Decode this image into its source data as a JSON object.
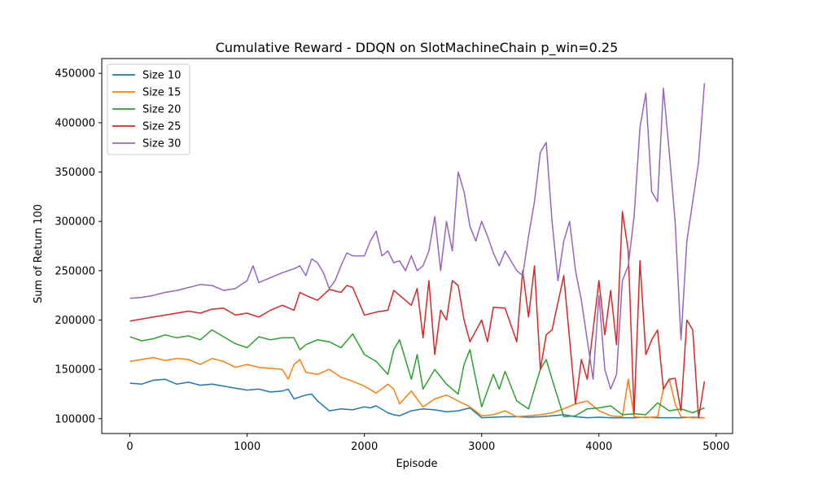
{
  "chart_data": {
    "type": "line",
    "title": "Cumulative Reward - DDQN on SlotMachineChain p_win=0.25",
    "xlabel": "Episode",
    "ylabel": "Sum of Return 100",
    "xlim": [
      -240,
      5140
    ],
    "ylim": [
      85000,
      465000
    ],
    "xticks": [
      0,
      1000,
      2000,
      3000,
      4000,
      5000
    ],
    "yticks": [
      100000,
      150000,
      200000,
      250000,
      300000,
      350000,
      400000,
      450000
    ],
    "grid": false,
    "legend_position": "top-left",
    "series": [
      {
        "name": "Size 10",
        "color": "#1f77b4",
        "x": [
          0,
          100,
          200,
          300,
          400,
          500,
          600,
          700,
          800,
          900,
          1000,
          1100,
          1200,
          1300,
          1350,
          1400,
          1450,
          1500,
          1550,
          1600,
          1700,
          1800,
          1900,
          2000,
          2050,
          2100,
          2200,
          2250,
          2300,
          2400,
          2500,
          2600,
          2700,
          2800,
          2900,
          3000,
          3100,
          3200,
          3300,
          3400,
          3500,
          3600,
          3700,
          3800,
          3900,
          4000,
          4100,
          4200,
          4300,
          4400,
          4500,
          4600,
          4700,
          4800,
          4900
        ],
        "values": [
          136000,
          135000,
          139000,
          140000,
          135000,
          137000,
          134000,
          135000,
          133000,
          131000,
          129000,
          130000,
          127000,
          128000,
          130000,
          120000,
          122000,
          124000,
          125000,
          118000,
          108000,
          110000,
          109000,
          112000,
          111000,
          113000,
          106000,
          104000,
          103000,
          108000,
          110000,
          109000,
          107000,
          108000,
          111000,
          101000,
          101500,
          102000,
          102000,
          101500,
          102000,
          103000,
          104000,
          102000,
          101000,
          101500,
          101000,
          101000,
          101000,
          101500,
          101000,
          101000,
          101000,
          101500,
          101000
        ]
      },
      {
        "name": "Size 15",
        "color": "#ff7f0e",
        "x": [
          0,
          100,
          200,
          300,
          400,
          500,
          600,
          700,
          800,
          900,
          1000,
          1100,
          1200,
          1300,
          1350,
          1400,
          1450,
          1500,
          1600,
          1700,
          1800,
          1900,
          2000,
          2100,
          2200,
          2250,
          2300,
          2400,
          2500,
          2600,
          2700,
          2800,
          2900,
          3000,
          3100,
          3200,
          3300,
          3400,
          3500,
          3600,
          3700,
          3800,
          3900,
          4000,
          4100,
          4200,
          4250,
          4300,
          4400,
          4500,
          4550,
          4600,
          4650,
          4700,
          4800,
          4900
        ],
        "values": [
          158000,
          160000,
          162000,
          159000,
          161000,
          160000,
          155000,
          161000,
          158000,
          152000,
          155000,
          152000,
          151000,
          150000,
          140000,
          155000,
          160000,
          147000,
          145000,
          150000,
          142000,
          138000,
          133000,
          126000,
          135000,
          130000,
          115000,
          128000,
          112000,
          120000,
          124000,
          118000,
          112000,
          103000,
          104000,
          108000,
          102000,
          103000,
          104000,
          106000,
          110000,
          115000,
          118000,
          108000,
          103000,
          102000,
          140000,
          102000,
          101000,
          102000,
          130000,
          140000,
          115000,
          102000,
          101000,
          101000
        ]
      },
      {
        "name": "Size 20",
        "color": "#2ca02c",
        "x": [
          0,
          100,
          200,
          300,
          400,
          500,
          600,
          700,
          800,
          900,
          1000,
          1100,
          1200,
          1300,
          1400,
          1450,
          1500,
          1600,
          1700,
          1800,
          1900,
          2000,
          2100,
          2200,
          2250,
          2300,
          2400,
          2450,
          2500,
          2600,
          2700,
          2800,
          2850,
          2900,
          2950,
          3000,
          3100,
          3150,
          3200,
          3300,
          3400,
          3500,
          3550,
          3600,
          3700,
          3800,
          3900,
          4000,
          4100,
          4200,
          4300,
          4400,
          4500,
          4600,
          4700,
          4800,
          4900
        ],
        "values": [
          183000,
          179000,
          181000,
          185000,
          182000,
          184000,
          180000,
          190000,
          183000,
          176000,
          172000,
          183000,
          180000,
          182000,
          182000,
          170000,
          175000,
          180000,
          178000,
          172000,
          186000,
          165000,
          158000,
          145000,
          170000,
          180000,
          140000,
          165000,
          130000,
          150000,
          135000,
          125000,
          155000,
          170000,
          140000,
          112000,
          145000,
          130000,
          148000,
          118000,
          110000,
          150000,
          160000,
          140000,
          102000,
          103000,
          110000,
          111000,
          113000,
          104000,
          105000,
          104000,
          116000,
          108000,
          110000,
          106000,
          111000
        ]
      },
      {
        "name": "Size 25",
        "color": "#d62728",
        "x": [
          0,
          100,
          200,
          300,
          400,
          500,
          600,
          700,
          800,
          900,
          1000,
          1100,
          1200,
          1300,
          1400,
          1450,
          1500,
          1600,
          1700,
          1800,
          1850,
          1900,
          2000,
          2100,
          2200,
          2250,
          2300,
          2400,
          2450,
          2500,
          2550,
          2600,
          2650,
          2700,
          2750,
          2800,
          2850,
          2900,
          3000,
          3050,
          3100,
          3200,
          3300,
          3350,
          3400,
          3450,
          3500,
          3550,
          3600,
          3700,
          3800,
          3850,
          3900,
          4000,
          4050,
          4100,
          4150,
          4200,
          4250,
          4300,
          4350,
          4400,
          4450,
          4500,
          4550,
          4600,
          4650,
          4700,
          4750,
          4800,
          4850,
          4900
        ],
        "values": [
          199000,
          201000,
          203000,
          205000,
          207000,
          209000,
          207000,
          211000,
          212000,
          205000,
          207000,
          203000,
          210000,
          215000,
          210000,
          228000,
          225000,
          220000,
          231000,
          228000,
          235000,
          233000,
          205000,
          208000,
          210000,
          230000,
          225000,
          215000,
          232000,
          182000,
          240000,
          165000,
          210000,
          200000,
          240000,
          235000,
          200000,
          178000,
          200000,
          178000,
          213000,
          212000,
          178000,
          250000,
          203000,
          255000,
          150000,
          185000,
          190000,
          245000,
          115000,
          160000,
          140000,
          240000,
          185000,
          230000,
          175000,
          310000,
          270000,
          105000,
          260000,
          165000,
          180000,
          190000,
          130000,
          140000,
          141000,
          108000,
          200000,
          190000,
          101000,
          138000
        ]
      },
      {
        "name": "Size 30",
        "color": "#9467bd",
        "x": [
          0,
          100,
          200,
          300,
          400,
          500,
          600,
          700,
          800,
          900,
          1000,
          1050,
          1100,
          1200,
          1300,
          1400,
          1450,
          1500,
          1550,
          1600,
          1650,
          1700,
          1750,
          1800,
          1850,
          1900,
          2000,
          2050,
          2100,
          2150,
          2200,
          2250,
          2300,
          2350,
          2400,
          2450,
          2500,
          2550,
          2600,
          2650,
          2700,
          2750,
          2800,
          2850,
          2900,
          2950,
          3000,
          3050,
          3100,
          3150,
          3200,
          3250,
          3300,
          3350,
          3400,
          3450,
          3500,
          3550,
          3600,
          3650,
          3700,
          3750,
          3800,
          3850,
          3900,
          3950,
          4000,
          4050,
          4100,
          4150,
          4200,
          4250,
          4300,
          4350,
          4400,
          4450,
          4500,
          4550,
          4600,
          4650,
          4700,
          4750,
          4800,
          4850,
          4900
        ],
        "values": [
          222000,
          223000,
          225000,
          228000,
          230000,
          233000,
          236000,
          235000,
          230000,
          232000,
          240000,
          255000,
          238000,
          243000,
          248000,
          252000,
          255000,
          245000,
          262000,
          258000,
          248000,
          232000,
          240000,
          255000,
          268000,
          265000,
          265000,
          280000,
          290000,
          265000,
          270000,
          258000,
          260000,
          250000,
          265000,
          250000,
          255000,
          270000,
          305000,
          250000,
          300000,
          270000,
          350000,
          330000,
          295000,
          280000,
          300000,
          285000,
          268000,
          255000,
          270000,
          260000,
          250000,
          245000,
          285000,
          320000,
          370000,
          380000,
          300000,
          240000,
          280000,
          300000,
          250000,
          220000,
          180000,
          140000,
          225000,
          150000,
          130000,
          145000,
          240000,
          255000,
          305000,
          395000,
          430000,
          330000,
          320000,
          435000,
          370000,
          300000,
          180000,
          280000,
          320000,
          360000,
          440000
        ]
      }
    ]
  }
}
